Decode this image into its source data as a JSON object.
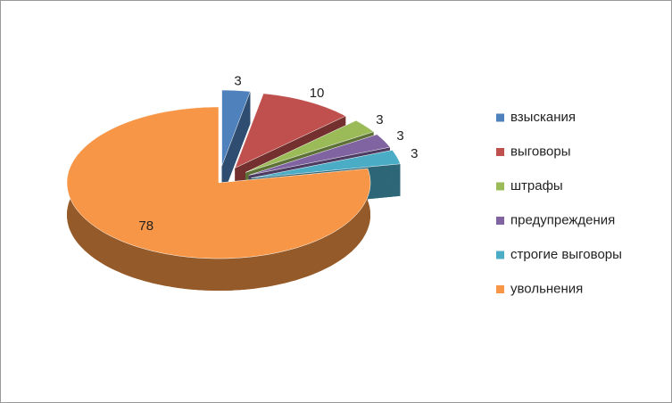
{
  "chart_data": {
    "type": "pie3d",
    "categories": [
      "взыскания",
      "выговоры",
      "штрафы",
      "предупреждения",
      "строгие выговоры",
      "увольнения"
    ],
    "values": [
      3,
      10,
      3,
      3,
      3,
      78
    ],
    "colors": [
      "#4f81bd",
      "#c0504d",
      "#9bbb59",
      "#8064a2",
      "#4bacc6",
      "#f79646"
    ],
    "legend": "right"
  }
}
